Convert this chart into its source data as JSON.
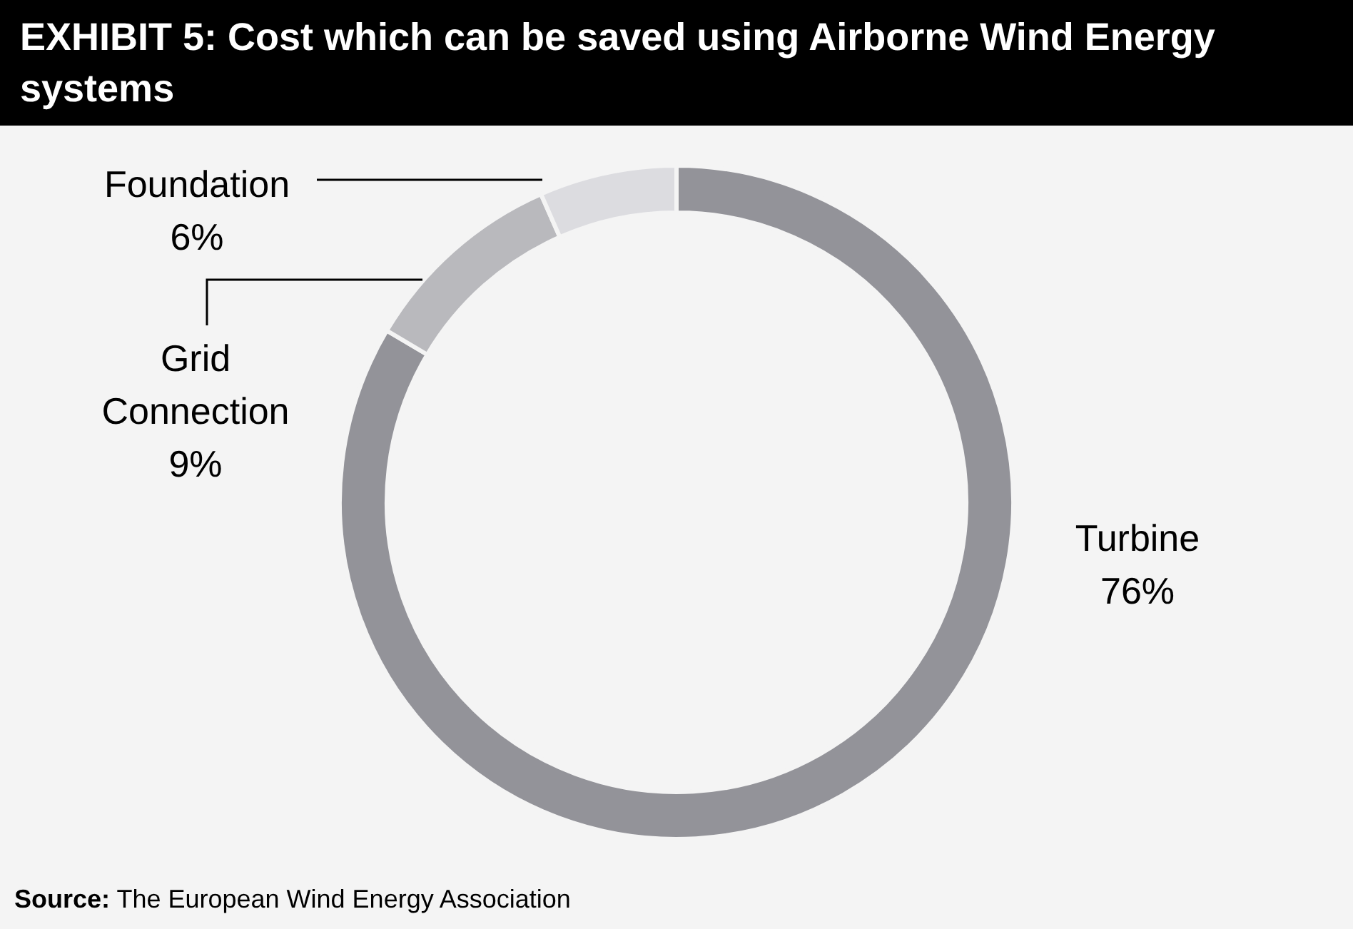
{
  "chart_data": {
    "type": "donut",
    "title": "EXHIBIT 5: Cost which can be saved using Airborne Wind Energy systems",
    "categories": [
      "Turbine",
      "Grid Connection",
      "Foundation"
    ],
    "values": [
      76,
      9,
      6
    ],
    "value_labels": [
      "76%",
      "9%",
      "6%"
    ],
    "colors": [
      "#939399",
      "#b9b9bd",
      "#dcdce0"
    ],
    "annotations": [
      "Source: The European Wind Energy Association"
    ]
  }
}
